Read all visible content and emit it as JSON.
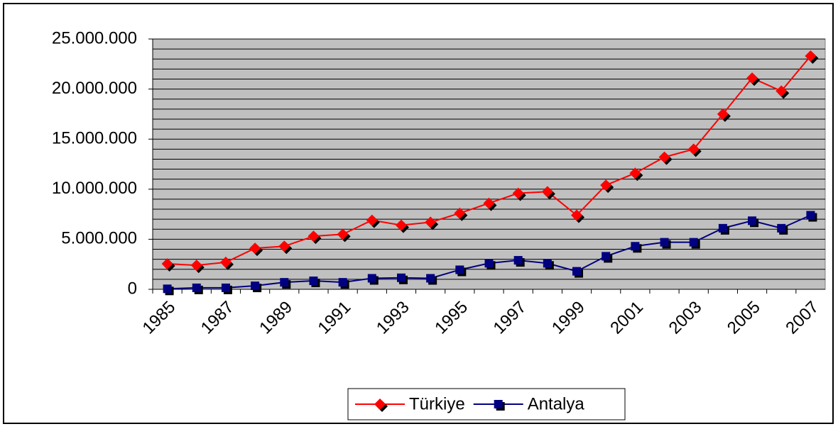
{
  "chart_data": {
    "type": "line",
    "categories": [
      "1985",
      null,
      "1987",
      null,
      "1989",
      null,
      "1991",
      null,
      "1993",
      null,
      "1995",
      null,
      "1997",
      null,
      "1999",
      null,
      "2001",
      null,
      "2003",
      null,
      "2005",
      null,
      "2007"
    ],
    "series": [
      {
        "name": "Türkiye",
        "color": "#ff0000",
        "marker": "diamond",
        "values": [
          2550000,
          2400000,
          2700000,
          4100000,
          4300000,
          5300000,
          5500000,
          6900000,
          6400000,
          6700000,
          7600000,
          8600000,
          9600000,
          9750000,
          7400000,
          10400000,
          11600000,
          13200000,
          14000000,
          17500000,
          21100000,
          19800000,
          23300000
        ]
      },
      {
        "name": "Antalya",
        "color": "#000080",
        "marker": "square",
        "values": [
          50000,
          150000,
          150000,
          350000,
          700000,
          850000,
          700000,
          1100000,
          1150000,
          1100000,
          1950000,
          2600000,
          2900000,
          2600000,
          1800000,
          3300000,
          4300000,
          4700000,
          4700000,
          6100000,
          6850000,
          6100000,
          7400000
        ]
      }
    ],
    "ylim": [
      0,
      25000000
    ],
    "yticks": [
      0,
      {
        "value": 5000000,
        "label": "5.000.000"
      },
      {
        "value": 10000000,
        "label": "10.000.000"
      },
      {
        "value": 15000000,
        "label": "15.000.000"
      },
      {
        "value": 20000000,
        "label": "20.000.000"
      },
      {
        "value": 25000000,
        "label": "25.000.000"
      }
    ],
    "y_minor_ticks": [
      1000000,
      2000000,
      3000000,
      4000000,
      6000000,
      7000000,
      8000000,
      9000000,
      11000000,
      12000000,
      13000000,
      14000000,
      16000000,
      17000000,
      18000000,
      19000000,
      21000000,
      22000000,
      23000000,
      24000000
    ],
    "grid": true,
    "plot_background": "#c0c0c0",
    "legend": "bottom"
  }
}
